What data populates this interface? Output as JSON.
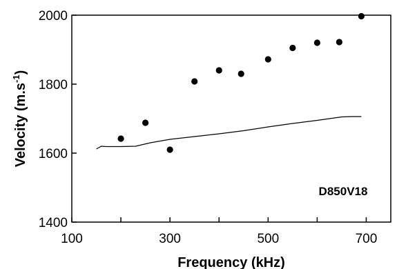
{
  "chart_data": {
    "type": "scatter",
    "title": "",
    "xlabel": "Frequency (kHz)",
    "ylabel_main": "Velocity (m.s",
    "ylabel_sup": "-1",
    "ylabel_close": ")",
    "xlim": [
      100,
      750
    ],
    "ylim": [
      1400,
      2000
    ],
    "x_ticks": [
      "100",
      "300",
      "500",
      "700"
    ],
    "y_ticks": [
      "1400",
      "1600",
      "1800",
      "2000"
    ],
    "x_tick_values": [
      100,
      300,
      500,
      700
    ],
    "y_tick_values": [
      1400,
      1600,
      1800,
      2000
    ],
    "annotation": "D850V18",
    "series": [
      {
        "style": "markers",
        "x": [
          200,
          250,
          300,
          350,
          400,
          445,
          500,
          550,
          600,
          645,
          690
        ],
        "y": [
          1642,
          1688,
          1610,
          1808,
          1840,
          1830,
          1872,
          1905,
          1920,
          1922,
          1997
        ]
      },
      {
        "style": "line",
        "x": [
          150,
          160,
          170,
          200,
          230,
          260,
          300,
          350,
          400,
          450,
          500,
          550,
          600,
          650,
          670,
          690
        ],
        "y": [
          1612,
          1620,
          1619,
          1619,
          1620,
          1630,
          1640,
          1648,
          1656,
          1665,
          1676,
          1686,
          1695,
          1705,
          1706,
          1706
        ]
      }
    ],
    "grid": false,
    "legend": "none"
  }
}
